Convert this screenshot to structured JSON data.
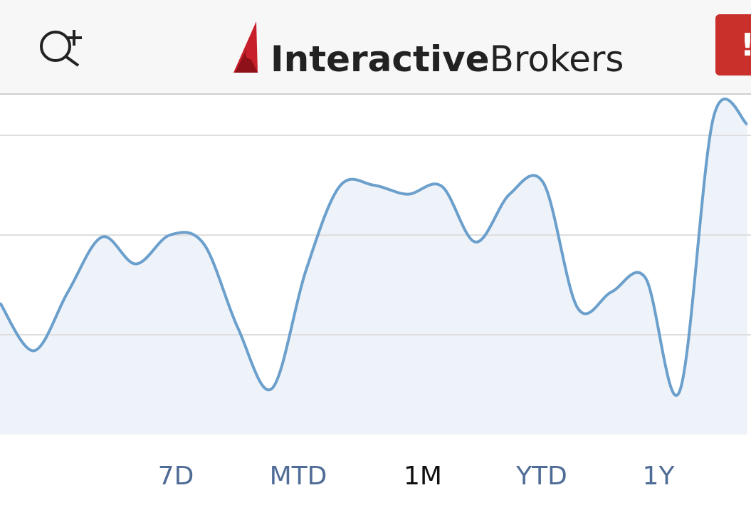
{
  "header": {
    "logo_bold": "Interactive",
    "logo_regular": "Brokers"
  },
  "chart_data": {
    "type": "area",
    "color": "#6b9fcc",
    "fill": "#eef3f9",
    "values": [
      1.32,
      0.84,
      1.43,
      1.98,
      1.71,
      2.0,
      1.91,
      1.07,
      0.46,
      1.64,
      2.49,
      2.5,
      2.41,
      2.49,
      1.93,
      2.41,
      2.52,
      1.27,
      1.43,
      1.57,
      0.43,
      3.18,
      3.11
    ],
    "ylim": [
      0,
      3.4
    ],
    "yticks": [
      1,
      2,
      3
    ],
    "grid": true
  },
  "tabs": [
    {
      "label": "7D",
      "selected": false
    },
    {
      "label": "MTD",
      "selected": false
    },
    {
      "label": "1M",
      "selected": true
    },
    {
      "label": "YTD",
      "selected": false
    },
    {
      "label": "1Y",
      "selected": false
    }
  ]
}
